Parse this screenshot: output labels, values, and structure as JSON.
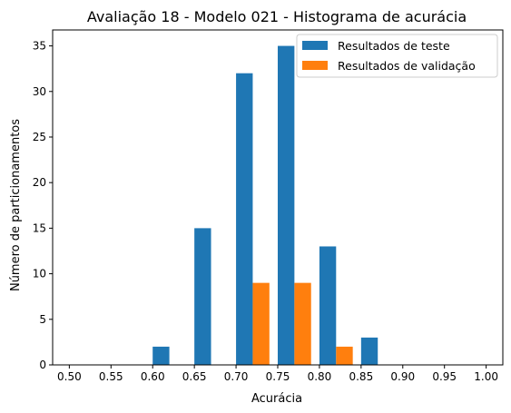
{
  "chart_data": {
    "type": "bar",
    "title": "Avaliação 18 - Modelo 021 - Histograma de acurácia",
    "xlabel": "Acurácia",
    "ylabel": "Número de particionamentos",
    "xlim": [
      0.48,
      1.02
    ],
    "ylim": [
      0,
      36.75
    ],
    "xticks": [
      "0.50",
      "0.55",
      "0.60",
      "0.65",
      "0.70",
      "0.75",
      "0.80",
      "0.85",
      "0.90",
      "0.95",
      "1.00"
    ],
    "yticks": [
      "0",
      "5",
      "10",
      "15",
      "20",
      "25",
      "30",
      "35"
    ],
    "bin_edges": [
      0.5,
      0.55,
      0.6,
      0.65,
      0.7,
      0.75,
      0.8,
      0.85,
      0.9,
      0.95,
      1.0
    ],
    "series": [
      {
        "name": "Resultados de teste",
        "color": "#1f77b4",
        "values": [
          0,
          0,
          2,
          15,
          32,
          35,
          13,
          3,
          0,
          0
        ]
      },
      {
        "name": "Resultados de validação",
        "color": "#ff7f0e",
        "values": [
          0,
          0,
          0,
          0,
          9,
          9,
          2,
          0,
          0,
          0
        ]
      }
    ],
    "legend_position": "upper right",
    "grid": false
  }
}
